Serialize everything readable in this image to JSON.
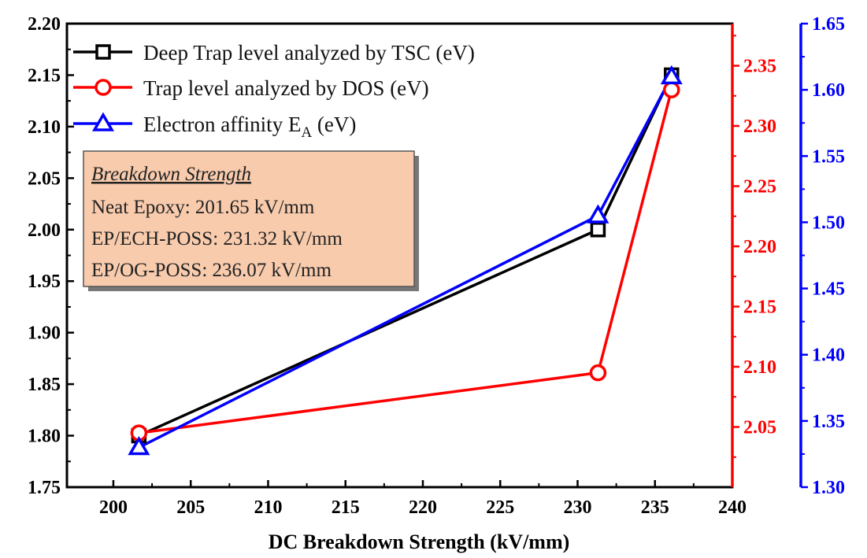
{
  "chart_data": {
    "type": "line",
    "xlabel": "DC Breakdown Strength (kV/mm)",
    "xlim": [
      197,
      240
    ],
    "xticks": [
      "200",
      "205",
      "210",
      "215",
      "220",
      "225",
      "230",
      "235",
      "240"
    ],
    "axes": {
      "left": {
        "ylim": [
          1.75,
          2.2
        ],
        "ticks": [
          "1.75",
          "1.80",
          "1.85",
          "1.90",
          "1.95",
          "2.00",
          "2.05",
          "2.10",
          "2.15",
          "2.20"
        ],
        "color": "#000000"
      },
      "right1": {
        "ylim": [
          2.0,
          2.385
        ],
        "ticks": [
          "2.05",
          "2.10",
          "2.15",
          "2.20",
          "2.25",
          "2.30",
          "2.35"
        ],
        "color": "#ff0000"
      },
      "right2": {
        "ylim": [
          1.3,
          1.65
        ],
        "ticks": [
          "1.30",
          "1.35",
          "1.40",
          "1.45",
          "1.50",
          "1.55",
          "1.60",
          "1.65"
        ],
        "color": "#0000ff"
      }
    },
    "series": [
      {
        "name": "Deep Trap level analyzed by TSC (eV)",
        "axis": "left",
        "color": "#000000",
        "marker": "square",
        "x": [
          201.65,
          231.32,
          236.07
        ],
        "y": [
          1.8,
          2.0,
          2.15
        ]
      },
      {
        "name": "Trap level analyzed by DOS (eV)",
        "axis": "right1",
        "color": "#ff0000",
        "marker": "circle",
        "x": [
          201.65,
          231.32,
          236.07
        ],
        "y": [
          2.045,
          2.095,
          2.33
        ]
      },
      {
        "name": "Electron affinity E_A (eV)",
        "axis": "right2",
        "color": "#0000ff",
        "marker": "triangle",
        "x": [
          201.65,
          231.32,
          236.07
        ],
        "y": [
          1.33,
          1.505,
          1.61
        ]
      }
    ],
    "legend": {
      "placement": "top-left",
      "entries": [
        {
          "text": "Deep Trap level analyzed by TSC (eV)"
        },
        {
          "text": "Trap level analyzed by DOS (eV)"
        },
        {
          "text": "Electron affinity E",
          "sub": "A",
          "tail": " (eV)"
        }
      ]
    },
    "annotation_box": {
      "title": "Breakdown Strength",
      "lines": [
        "Neat Epoxy: 201.65 kV/mm",
        "EP/ECH-POSS: 231.32 kV/mm",
        "EP/OG-POSS: 236.07 kV/mm"
      ],
      "fill": "#f8cbad"
    }
  }
}
